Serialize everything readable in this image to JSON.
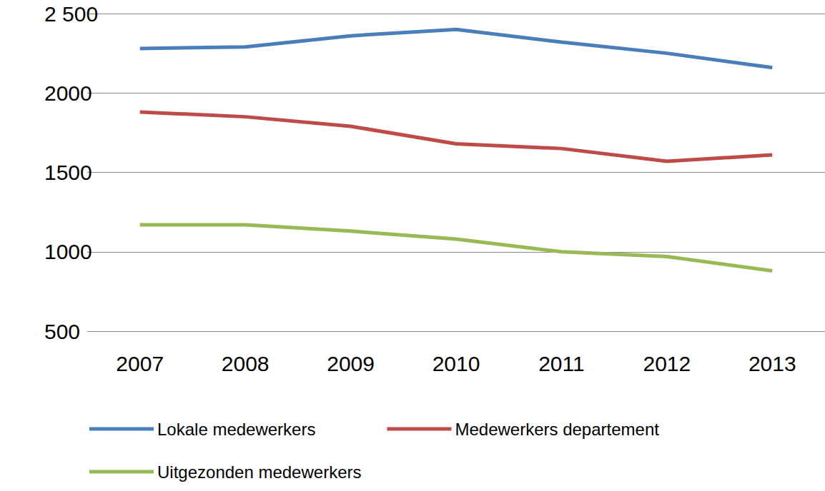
{
  "chart_data": {
    "type": "line",
    "categories": [
      "2007",
      "2008",
      "2009",
      "2010",
      "2011",
      "2012",
      "2013"
    ],
    "series": [
      {
        "name": "Lokale medewerkers",
        "color": "#4a7ebb",
        "values": [
          2280,
          2290,
          2360,
          2400,
          2320,
          2250,
          2160
        ]
      },
      {
        "name": "Medewerkers departement",
        "color": "#be4b48",
        "values": [
          1880,
          1850,
          1790,
          1680,
          1650,
          1570,
          1610
        ]
      },
      {
        "name": "Uitgezonden medewerkers",
        "color": "#98b954",
        "values": [
          1170,
          1170,
          1130,
          1080,
          1000,
          970,
          880
        ]
      }
    ],
    "ylim": [
      500,
      2500
    ],
    "yticks": [
      500,
      1000,
      1500,
      2000,
      {
        "value": 2500,
        "label": "2 500"
      }
    ],
    "grid": true,
    "legend": "bottom"
  }
}
